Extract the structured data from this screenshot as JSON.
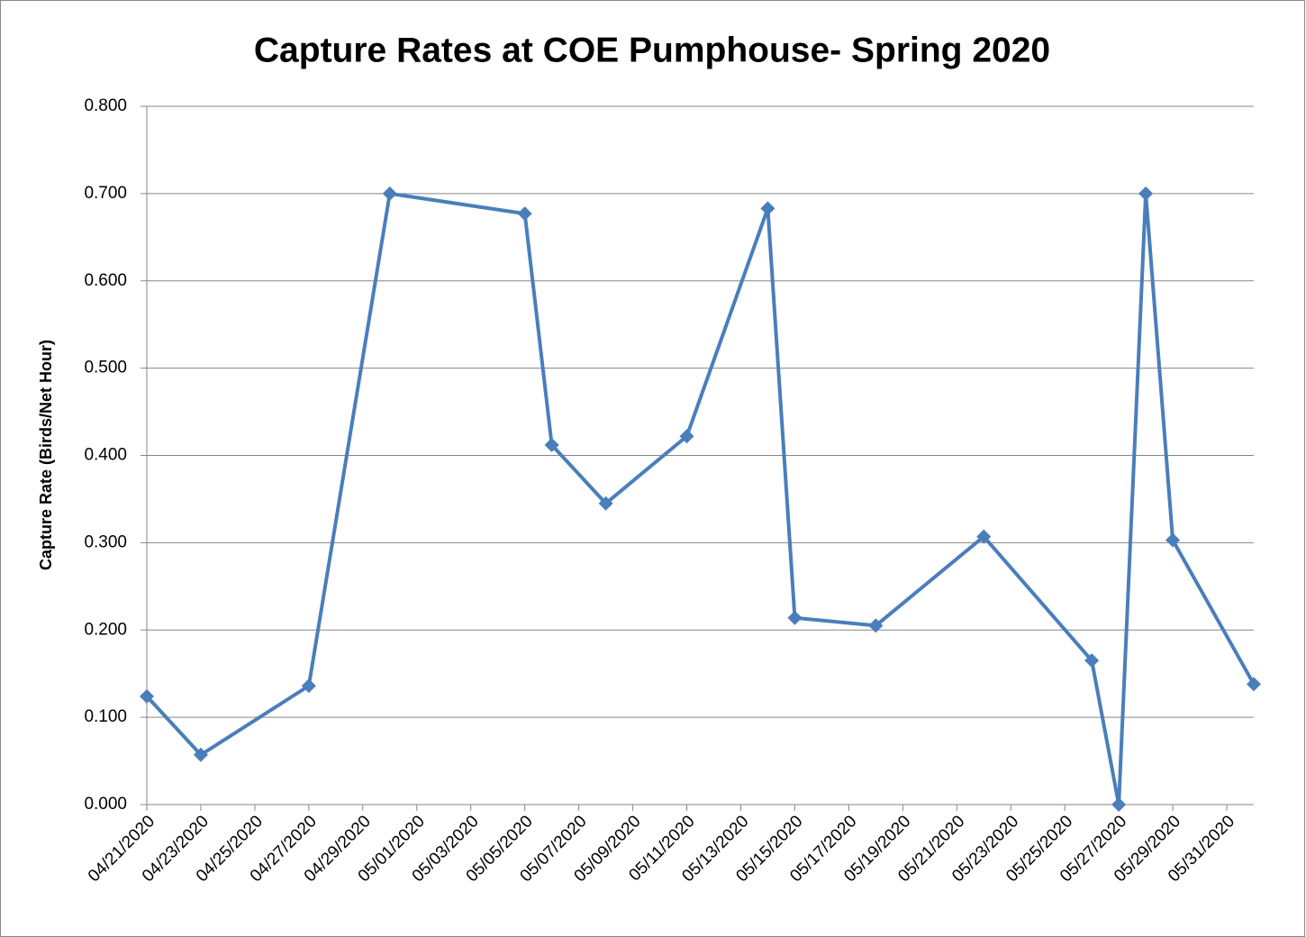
{
  "chart_data": {
    "type": "line",
    "title": "Capture Rates at COE Pumphouse- Spring 2020",
    "ylabel": "Capture Rate (Birds/Net Hour)",
    "x": [
      "04/21/2020",
      "04/23/2020",
      "04/27/2020",
      "04/30/2020",
      "05/05/2020",
      "05/06/2020",
      "05/08/2020",
      "05/11/2020",
      "05/14/2020",
      "05/15/2020",
      "05/18/2020",
      "05/22/2020",
      "05/26/2020",
      "05/27/2020",
      "05/28/2020",
      "05/29/2020",
      "06/01/2020"
    ],
    "series": [
      {
        "color": "#4a7ebb",
        "values": [
          0.124,
          0.057,
          0.136,
          0.7,
          0.677,
          0.412,
          0.345,
          0.422,
          0.683,
          0.214,
          0.205,
          0.307,
          0.165,
          0.0,
          0.7,
          0.303,
          0.138
        ]
      }
    ],
    "xlim": [
      "04/21/2020",
      "06/01/2020"
    ],
    "xticks": [
      "04/21/2020",
      "04/23/2020",
      "04/25/2020",
      "04/27/2020",
      "04/29/2020",
      "05/01/2020",
      "05/03/2020",
      "05/05/2020",
      "05/07/2020",
      "05/09/2020",
      "05/11/2020",
      "05/13/2020",
      "05/15/2020",
      "05/17/2020",
      "05/19/2020",
      "05/21/2020",
      "05/23/2020",
      "05/25/2020",
      "05/27/2020",
      "05/29/2020",
      "05/31/2020"
    ],
    "ylim": [
      0,
      0.8
    ],
    "yticks": [
      {
        "value": 0,
        "label": "0.000"
      },
      {
        "value": 0.1,
        "label": "0.100"
      },
      {
        "value": 0.2,
        "label": "0.200"
      },
      {
        "value": 0.3,
        "label": "0.300"
      },
      {
        "value": 0.4,
        "label": "0.400"
      },
      {
        "value": 0.5,
        "label": "0.500"
      },
      {
        "value": 0.6,
        "label": "0.600"
      },
      {
        "value": 0.7,
        "label": "0.700"
      },
      {
        "value": 0.8,
        "label": "0.800"
      }
    ],
    "grid": true
  }
}
